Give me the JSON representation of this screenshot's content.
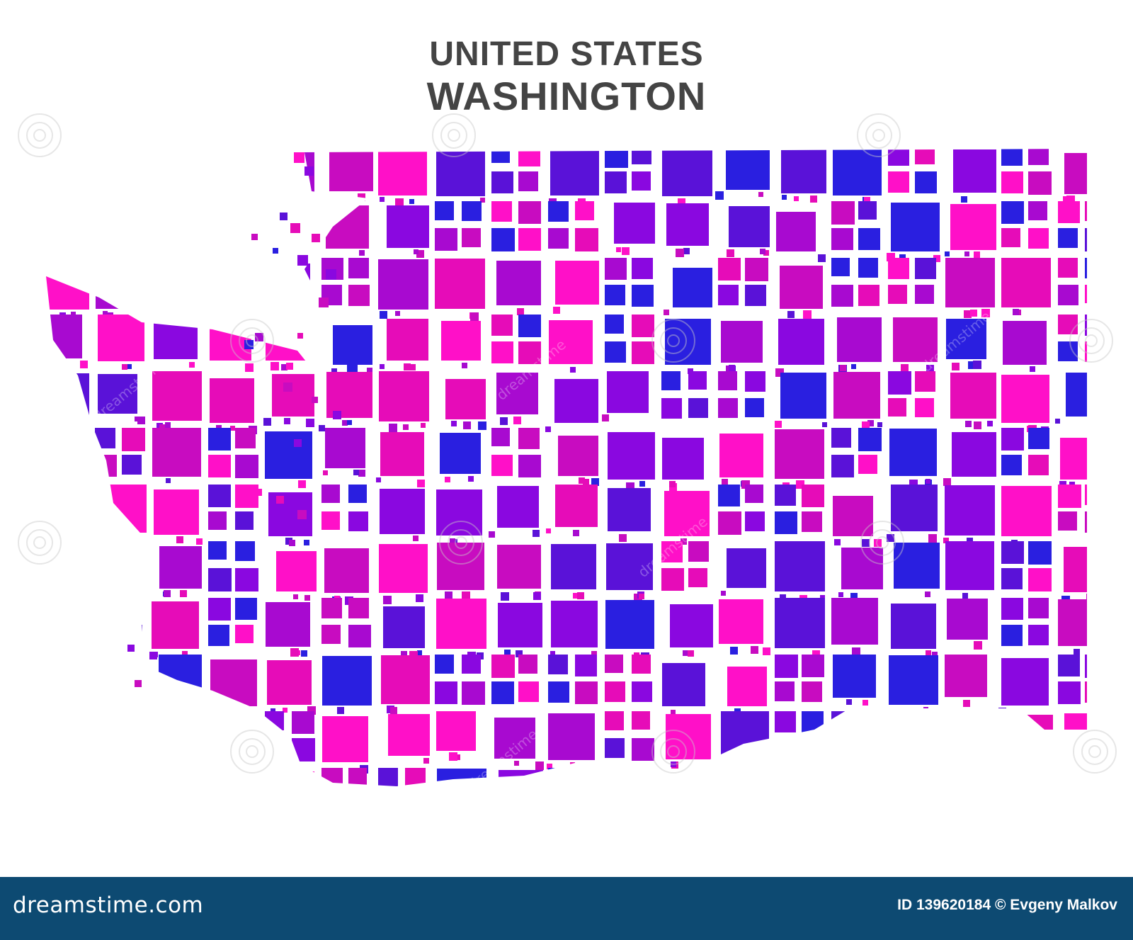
{
  "title": {
    "line1": "UNITED STATES",
    "line2": "WASHINGTON"
  },
  "map": {
    "subject": "Washington state",
    "style": "mosaic of rotated squares",
    "palette": [
      "#2a1fe0",
      "#5a12d8",
      "#8a08e0",
      "#a80ad0",
      "#c80cc0",
      "#e60cb8",
      "#ff10c8"
    ]
  },
  "watermark": {
    "text": "dreamstime",
    "icon": "spiral-icon"
  },
  "footer": {
    "brand": "dreamstime.com",
    "credit": "ID 139620184 © Evgeny Malkov",
    "background": "#0d4a72"
  }
}
